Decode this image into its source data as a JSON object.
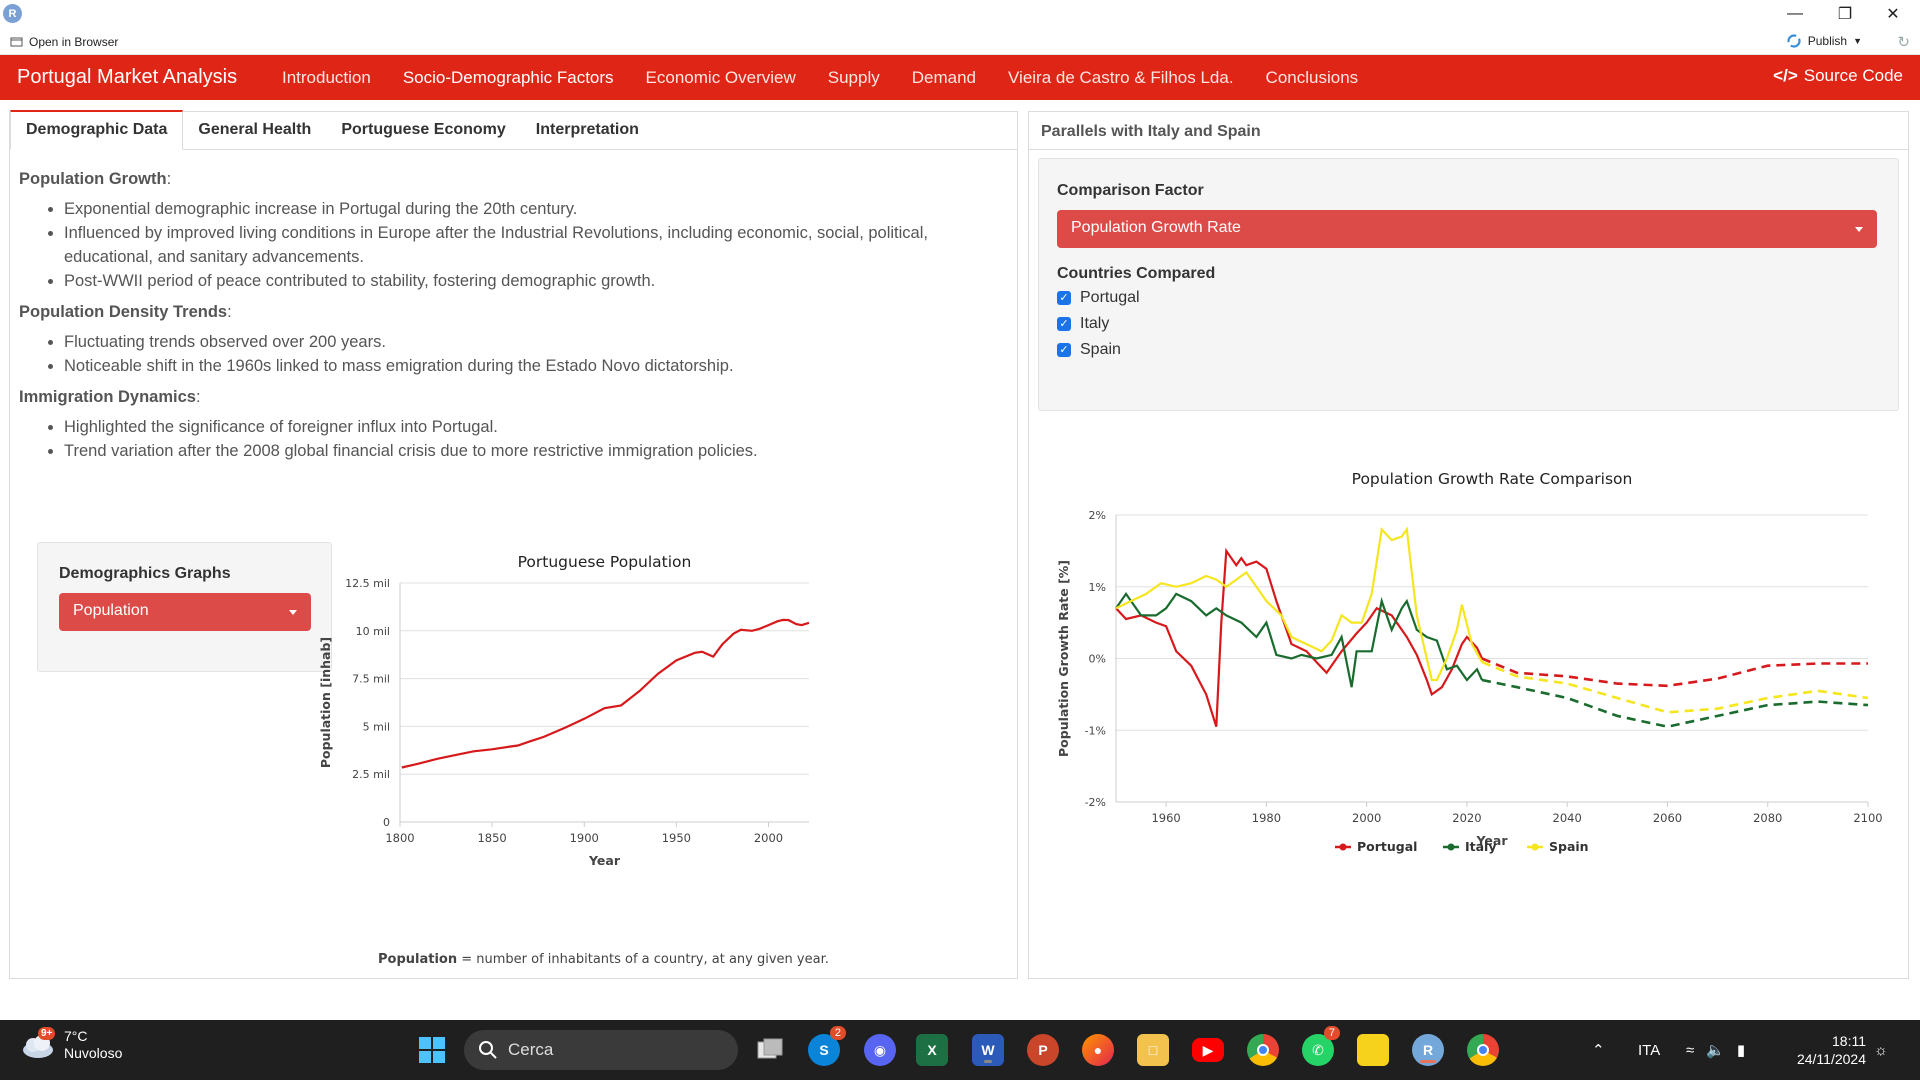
{
  "window": {
    "app_logo": "R",
    "open_in_browser": "Open in Browser",
    "publish": "Publish"
  },
  "navbar": {
    "brand": "Portugal Market Analysis",
    "items": [
      "Introduction",
      "Socio-Demographic Factors",
      "Economic Overview",
      "Supply",
      "Demand",
      "Vieira de Castro & Filhos Lda.",
      "Conclusions"
    ],
    "active": "Socio-Demographic Factors",
    "source_code": "Source Code",
    "color": "#de2516"
  },
  "left_panel": {
    "tabs": [
      "Demographic Data",
      "General Health",
      "Portuguese Economy",
      "Interpretation"
    ],
    "active_tab": "Demographic Data",
    "sections": [
      {
        "heading": "Population Growth",
        "bullets": [
          "Exponential demographic increase in Portugal during the 20th century.",
          "Influenced by improved living conditions in Europe after the Industrial Revolutions, including economic, social, political, educational, and sanitary advancements.",
          "Post-WWII period of peace contributed to stability, fostering demographic growth."
        ]
      },
      {
        "heading": "Population Density Trends",
        "bullets": [
          "Fluctuating trends observed over 200 years.",
          "Noticeable shift in the 1960s linked to mass emigration during the Estado Novo dictatorship."
        ]
      },
      {
        "heading": "Immigration Dynamics",
        "bullets": [
          "Highlighted the significance of foreigner influx into Portugal.",
          "Trend variation after the 2008 global financial crisis due to more restrictive immigration policies."
        ]
      }
    ],
    "graphs_select": {
      "label": "Demographics Graphs",
      "value": "Population"
    },
    "caption_term": "Population",
    "caption_rest": " = number of inhabitants of a country, at any given year."
  },
  "right_panel": {
    "header": "Parallels with Italy and Spain",
    "factor_label": "Comparison Factor",
    "factor_value": "Population Growth Rate",
    "countries_label": "Countries Compared",
    "countries": [
      {
        "name": "Portugal",
        "checked": true
      },
      {
        "name": "Italy",
        "checked": true
      },
      {
        "name": "Spain",
        "checked": true
      }
    ]
  },
  "chart_data": [
    {
      "type": "line",
      "title": "Portuguese Population",
      "xlabel": "Year",
      "ylabel": "Population [inhab]",
      "xlim": [
        1800,
        2022
      ],
      "ylim": [
        0,
        12500000
      ],
      "x_ticks": [
        1800,
        1850,
        1900,
        1950,
        2000
      ],
      "y_ticks": [
        0,
        2500000,
        5000000,
        7500000,
        10000000,
        12500000
      ],
      "y_tick_labels": [
        "0",
        "2.5 mil",
        "5 mil",
        "7.5 mil",
        "10 mil",
        "12.5 mil"
      ],
      "grid": true,
      "series": [
        {
          "color": "#d7191c",
          "x": [
            1801,
            1810,
            1820,
            1830,
            1840,
            1850,
            1860,
            1864,
            1870,
            1878,
            1890,
            1900,
            1911,
            1920,
            1930,
            1940,
            1950,
            1960,
            1964,
            1970,
            1975,
            1981,
            1985,
            1991,
            1995,
            2000,
            2005,
            2008,
            2011,
            2015,
            2018,
            2022
          ],
          "y": [
            2850000,
            3050000,
            3300000,
            3500000,
            3700000,
            3800000,
            3950000,
            4000000,
            4200000,
            4450000,
            4950000,
            5400000,
            5950000,
            6100000,
            6850000,
            7750000,
            8450000,
            8850000,
            8900000,
            8650000,
            9300000,
            9850000,
            10050000,
            10000000,
            10100000,
            10300000,
            10500000,
            10570000,
            10560000,
            10350000,
            10300000,
            10420000
          ]
        }
      ]
    },
    {
      "type": "line",
      "title": "Population Growth Rate Comparison",
      "xlabel": "Year",
      "ylabel": "Population Growth Rate [%]",
      "xlim": [
        1950,
        2100
      ],
      "ylim": [
        -2,
        2
      ],
      "x_ticks": [
        1960,
        1980,
        2000,
        2020,
        2040,
        2060,
        2080,
        2100
      ],
      "y_ticks": [
        -2,
        -1,
        0,
        1,
        2
      ],
      "y_tick_labels": [
        "-2%",
        "-1%",
        "0%",
        "1%",
        "2%"
      ],
      "grid": true,
      "legend": "bottom",
      "projection_from": 2023,
      "series": [
        {
          "name": "Portugal",
          "color": "#d7191c",
          "x": [
            1950,
            1952,
            1955,
            1958,
            1960,
            1962,
            1965,
            1968,
            1970,
            1971,
            1972,
            1974,
            1975,
            1976,
            1978,
            1980,
            1982,
            1985,
            1988,
            1990,
            1992,
            1995,
            1998,
            2000,
            2002,
            2005,
            2008,
            2010,
            2012,
            2013,
            2015,
            2017,
            2019,
            2020,
            2022,
            2023,
            2030,
            2040,
            2050,
            2060,
            2070,
            2080,
            2090,
            2100
          ],
          "y": [
            0.7,
            0.55,
            0.6,
            0.5,
            0.45,
            0.1,
            -0.1,
            -0.5,
            -0.95,
            0.5,
            1.5,
            1.3,
            1.4,
            1.3,
            1.35,
            1.25,
            0.8,
            0.2,
            0.1,
            -0.05,
            -0.2,
            0.1,
            0.35,
            0.5,
            0.7,
            0.6,
            0.3,
            0.05,
            -0.3,
            -0.5,
            -0.4,
            -0.15,
            0.2,
            0.3,
            0.15,
            0.0,
            -0.2,
            -0.25,
            -0.35,
            -0.38,
            -0.28,
            -0.1,
            -0.07,
            -0.07
          ]
        },
        {
          "name": "Italy",
          "color": "#1a6b2e",
          "x": [
            1950,
            1952,
            1955,
            1958,
            1960,
            1962,
            1965,
            1968,
            1970,
            1972,
            1975,
            1978,
            1980,
            1982,
            1985,
            1987,
            1990,
            1993,
            1995,
            1997,
            1998,
            2000,
            2001,
            2003,
            2005,
            2007,
            2008,
            2010,
            2012,
            2014,
            2016,
            2018,
            2020,
            2022,
            2023,
            2030,
            2040,
            2050,
            2060,
            2070,
            2080,
            2090,
            2100
          ],
          "y": [
            0.7,
            0.9,
            0.6,
            0.6,
            0.7,
            0.9,
            0.8,
            0.6,
            0.7,
            0.6,
            0.5,
            0.3,
            0.5,
            0.05,
            0.0,
            0.05,
            0.0,
            0.05,
            0.3,
            -0.4,
            0.1,
            0.1,
            0.1,
            0.8,
            0.4,
            0.7,
            0.8,
            0.4,
            0.3,
            0.25,
            -0.15,
            -0.1,
            -0.3,
            -0.15,
            -0.3,
            -0.4,
            -0.55,
            -0.8,
            -0.95,
            -0.8,
            -0.65,
            -0.6,
            -0.65
          ]
        },
        {
          "name": "Spain",
          "color": "#f5e61f",
          "x": [
            1950,
            1953,
            1956,
            1959,
            1962,
            1965,
            1968,
            1970,
            1972,
            1974,
            1976,
            1978,
            1980,
            1983,
            1985,
            1988,
            1991,
            1993,
            1995,
            1997,
            1999,
            2001,
            2003,
            2005,
            2007,
            2008,
            2010,
            2012,
            2013,
            2014,
            2016,
            2018,
            2019,
            2021,
            2023,
            2030,
            2040,
            2050,
            2060,
            2070,
            2080,
            2090,
            2100
          ],
          "y": [
            0.7,
            0.8,
            0.9,
            1.05,
            1.0,
            1.05,
            1.15,
            1.1,
            1.0,
            1.1,
            1.2,
            1.0,
            0.8,
            0.6,
            0.3,
            0.2,
            0.1,
            0.25,
            0.6,
            0.5,
            0.5,
            0.9,
            1.8,
            1.65,
            1.7,
            1.8,
            0.6,
            0.0,
            -0.3,
            -0.3,
            0.0,
            0.4,
            0.75,
            0.2,
            -0.05,
            -0.25,
            -0.35,
            -0.55,
            -0.75,
            -0.7,
            -0.55,
            -0.45,
            -0.55
          ]
        }
      ]
    }
  ],
  "taskbar": {
    "weather_badge": "9+",
    "temperature": "7°C",
    "weather_desc": "Nuvoloso",
    "search_placeholder": "Cerca",
    "skype_badge": "2",
    "whatsapp_badge": "7",
    "language": "ITA",
    "time": "18:11",
    "date": "24/11/2024"
  }
}
